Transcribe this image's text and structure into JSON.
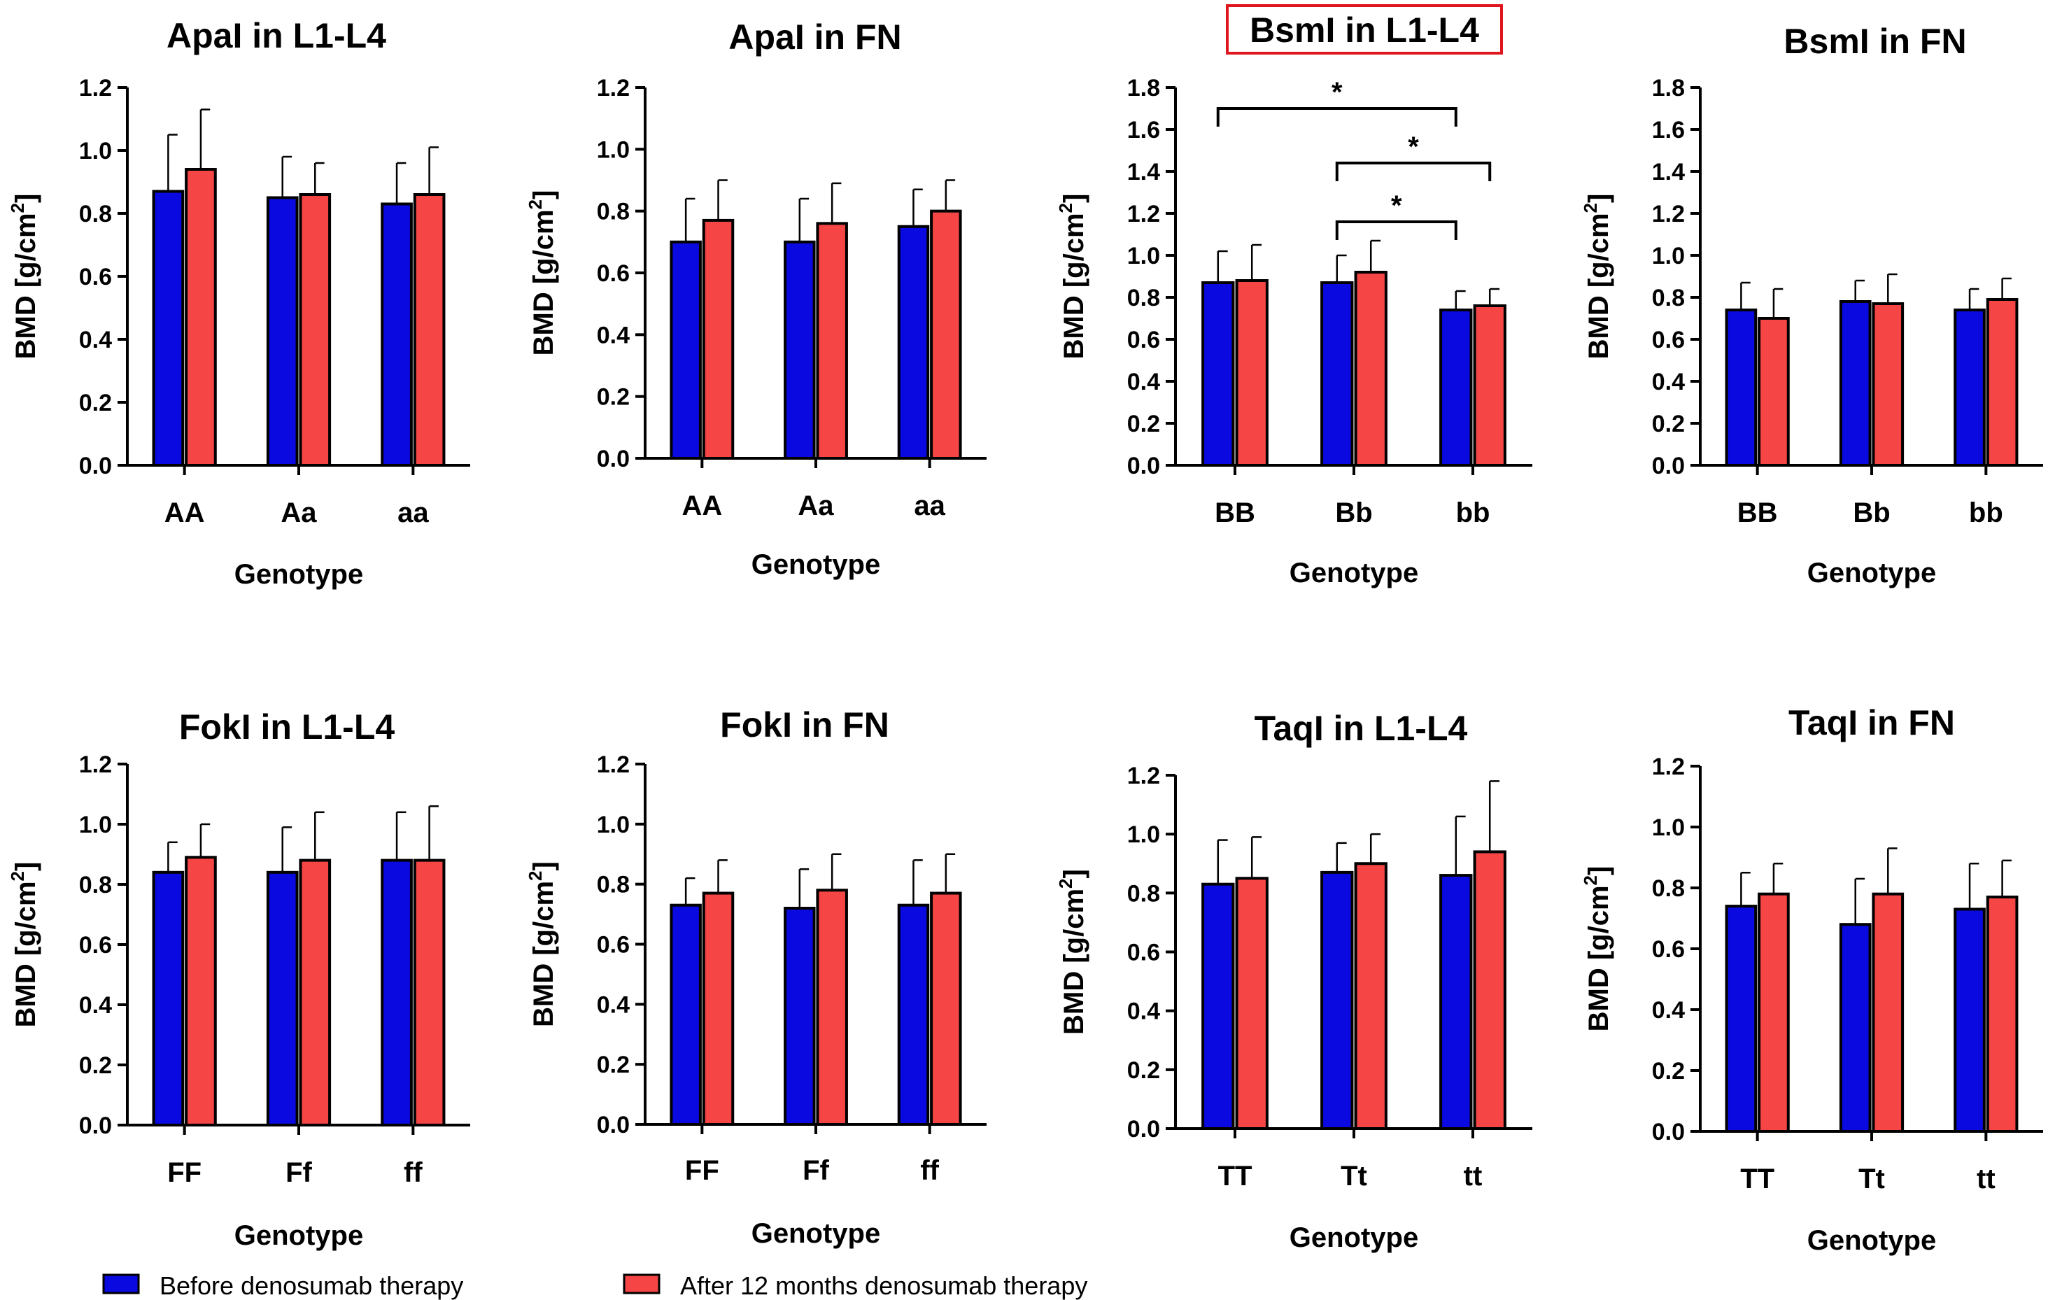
{
  "legend": {
    "before_label": "Before denosumab therapy",
    "after_label": "After 12 months denosumab therapy",
    "before_color": "#0a0ae0",
    "after_color": "#f54545"
  },
  "chart_data": [
    {
      "type": "bar",
      "id": "apai-l1l4",
      "title": "ApaI in L1-L4",
      "highlighted": false,
      "xlabel": "Genotype",
      "ylabel": "BMD [g/cm",
      "ylabel_sup": "2",
      "ylabel_end": "]",
      "ylim": [
        0,
        1.2
      ],
      "ytick_step": 0.2,
      "ytick_labels": [
        "0.0",
        "0.2",
        "0.4",
        "0.6",
        "0.8",
        "1.0",
        "1.2"
      ],
      "categories": [
        "AA",
        "Aa",
        "aa"
      ],
      "series": [
        {
          "name": "Before denosumab therapy",
          "values": [
            0.87,
            0.85,
            0.83
          ],
          "errors": [
            0.18,
            0.13,
            0.13
          ]
        },
        {
          "name": "After 12 months denosumab therapy",
          "values": [
            0.94,
            0.86,
            0.86
          ],
          "errors": [
            0.19,
            0.1,
            0.15
          ]
        }
      ],
      "significance": []
    },
    {
      "type": "bar",
      "id": "apai-fn",
      "title": "ApaI in FN",
      "highlighted": false,
      "xlabel": "Genotype",
      "ylabel": "BMD [g/cm",
      "ylabel_sup": "2",
      "ylabel_end": "]",
      "ylim": [
        0,
        1.2
      ],
      "ytick_step": 0.2,
      "ytick_labels": [
        "0.0",
        "0.2",
        "0.4",
        "0.6",
        "0.8",
        "1.0",
        "1.2"
      ],
      "categories": [
        "AA",
        "Aa",
        "aa"
      ],
      "series": [
        {
          "name": "Before denosumab therapy",
          "values": [
            0.7,
            0.7,
            0.75
          ],
          "errors": [
            0.14,
            0.14,
            0.12
          ]
        },
        {
          "name": "After 12 months denosumab therapy",
          "values": [
            0.77,
            0.76,
            0.8
          ],
          "errors": [
            0.13,
            0.13,
            0.1
          ]
        }
      ],
      "significance": []
    },
    {
      "type": "bar",
      "id": "bsmi-l1l4",
      "title": "BsmI in L1-L4",
      "highlighted": true,
      "xlabel": "Genotype",
      "ylabel": "BMD [g/cm",
      "ylabel_sup": "2",
      "ylabel_end": "]",
      "ylim": [
        0,
        1.8
      ],
      "ytick_step": 0.2,
      "ytick_labels": [
        "0.0",
        "0.2",
        "0.4",
        "0.6",
        "0.8",
        "1.0",
        "1.2",
        "1.4",
        "1.6",
        "1.8"
      ],
      "categories": [
        "BB",
        "Bb",
        "bb"
      ],
      "series": [
        {
          "name": "Before denosumab therapy",
          "values": [
            0.87,
            0.87,
            0.74
          ],
          "errors": [
            0.15,
            0.13,
            0.09
          ]
        },
        {
          "name": "After 12 months denosumab therapy",
          "values": [
            0.88,
            0.92,
            0.76
          ],
          "errors": [
            0.17,
            0.15,
            0.08
          ]
        }
      ],
      "significance": [
        {
          "from": "BB",
          "to": "bb",
          "y": 1.7,
          "label": "*"
        },
        {
          "from": "Bb",
          "to": "bb-after",
          "y": 1.44,
          "label": "*"
        },
        {
          "from": "Bb",
          "to": "bb",
          "y": 1.16,
          "label": "*"
        }
      ]
    },
    {
      "type": "bar",
      "id": "bsmi-fn",
      "title": "BsmI in FN",
      "highlighted": false,
      "xlabel": "Genotype",
      "ylabel": "BMD [g/cm",
      "ylabel_sup": "2",
      "ylabel_end": "]",
      "ylim": [
        0,
        1.8
      ],
      "ytick_step": 0.2,
      "ytick_labels": [
        "0.0",
        "0.2",
        "0.4",
        "0.6",
        "0.8",
        "1.0",
        "1.2",
        "1.4",
        "1.6",
        "1.8"
      ],
      "categories": [
        "BB",
        "Bb",
        "bb"
      ],
      "series": [
        {
          "name": "Before denosumab therapy",
          "values": [
            0.74,
            0.78,
            0.74
          ],
          "errors": [
            0.13,
            0.1,
            0.1
          ]
        },
        {
          "name": "After 12 months denosumab therapy",
          "values": [
            0.7,
            0.77,
            0.79
          ],
          "errors": [
            0.14,
            0.14,
            0.1
          ]
        }
      ],
      "significance": []
    },
    {
      "type": "bar",
      "id": "foki-l1l4",
      "title": "FokI in L1-L4",
      "highlighted": false,
      "xlabel": "Genotype",
      "ylabel": "BMD [g/cm",
      "ylabel_sup": "2",
      "ylabel_end": "]",
      "ylim": [
        0,
        1.2
      ],
      "ytick_step": 0.2,
      "ytick_labels": [
        "0.0",
        "0.2",
        "0.4",
        "0.6",
        "0.8",
        "1.0",
        "1.2"
      ],
      "categories": [
        "FF",
        "Ff",
        "ff"
      ],
      "series": [
        {
          "name": "Before denosumab therapy",
          "values": [
            0.84,
            0.84,
            0.88
          ],
          "errors": [
            0.1,
            0.15,
            0.16
          ]
        },
        {
          "name": "After 12 months denosumab therapy",
          "values": [
            0.89,
            0.88,
            0.88
          ],
          "errors": [
            0.11,
            0.16,
            0.18
          ]
        }
      ],
      "significance": []
    },
    {
      "type": "bar",
      "id": "foki-fn",
      "title": "FokI in FN",
      "highlighted": false,
      "xlabel": "Genotype",
      "ylabel": "BMD [g/cm",
      "ylabel_sup": "2",
      "ylabel_end": "]",
      "ylim": [
        0,
        1.2
      ],
      "ytick_step": 0.2,
      "ytick_labels": [
        "0.0",
        "0.2",
        "0.4",
        "0.6",
        "0.8",
        "1.0",
        "1.2"
      ],
      "categories": [
        "FF",
        "Ff",
        "ff"
      ],
      "series": [
        {
          "name": "Before denosumab therapy",
          "values": [
            0.73,
            0.72,
            0.73
          ],
          "errors": [
            0.09,
            0.13,
            0.15
          ]
        },
        {
          "name": "After 12 months denosumab therapy",
          "values": [
            0.77,
            0.78,
            0.77
          ],
          "errors": [
            0.11,
            0.12,
            0.13
          ]
        }
      ],
      "significance": []
    },
    {
      "type": "bar",
      "id": "taqi-l1l4",
      "title": "TaqI in L1-L4",
      "highlighted": false,
      "xlabel": "Genotype",
      "ylabel": "BMD [g/cm",
      "ylabel_sup": "2",
      "ylabel_end": "]",
      "ylim": [
        0,
        1.2
      ],
      "ytick_step": 0.2,
      "ytick_labels": [
        "0.0",
        "0.2",
        "0.4",
        "0.6",
        "0.8",
        "1.0",
        "1.2"
      ],
      "categories": [
        "TT",
        "Tt",
        "tt"
      ],
      "series": [
        {
          "name": "Before denosumab therapy",
          "values": [
            0.83,
            0.87,
            0.86
          ],
          "errors": [
            0.15,
            0.1,
            0.2
          ]
        },
        {
          "name": "After 12 months denosumab therapy",
          "values": [
            0.85,
            0.9,
            0.94
          ],
          "errors": [
            0.14,
            0.1,
            0.24
          ]
        }
      ],
      "significance": []
    },
    {
      "type": "bar",
      "id": "taqi-fn",
      "title": "TaqI in FN",
      "highlighted": false,
      "xlabel": "Genotype",
      "ylabel": "BMD [g/cm",
      "ylabel_sup": "2",
      "ylabel_end": "]",
      "ylim": [
        0,
        1.2
      ],
      "ytick_step": 0.2,
      "ytick_labels": [
        "0.0",
        "0.2",
        "0.4",
        "0.6",
        "0.8",
        "1.0",
        "1.2"
      ],
      "categories": [
        "TT",
        "Tt",
        "tt"
      ],
      "series": [
        {
          "name": "Before denosumab therapy",
          "values": [
            0.74,
            0.68,
            0.73
          ],
          "errors": [
            0.11,
            0.15,
            0.15
          ]
        },
        {
          "name": "After 12 months denosumab therapy",
          "values": [
            0.78,
            0.78,
            0.77
          ],
          "errors": [
            0.1,
            0.15,
            0.12
          ]
        }
      ],
      "significance": []
    }
  ]
}
